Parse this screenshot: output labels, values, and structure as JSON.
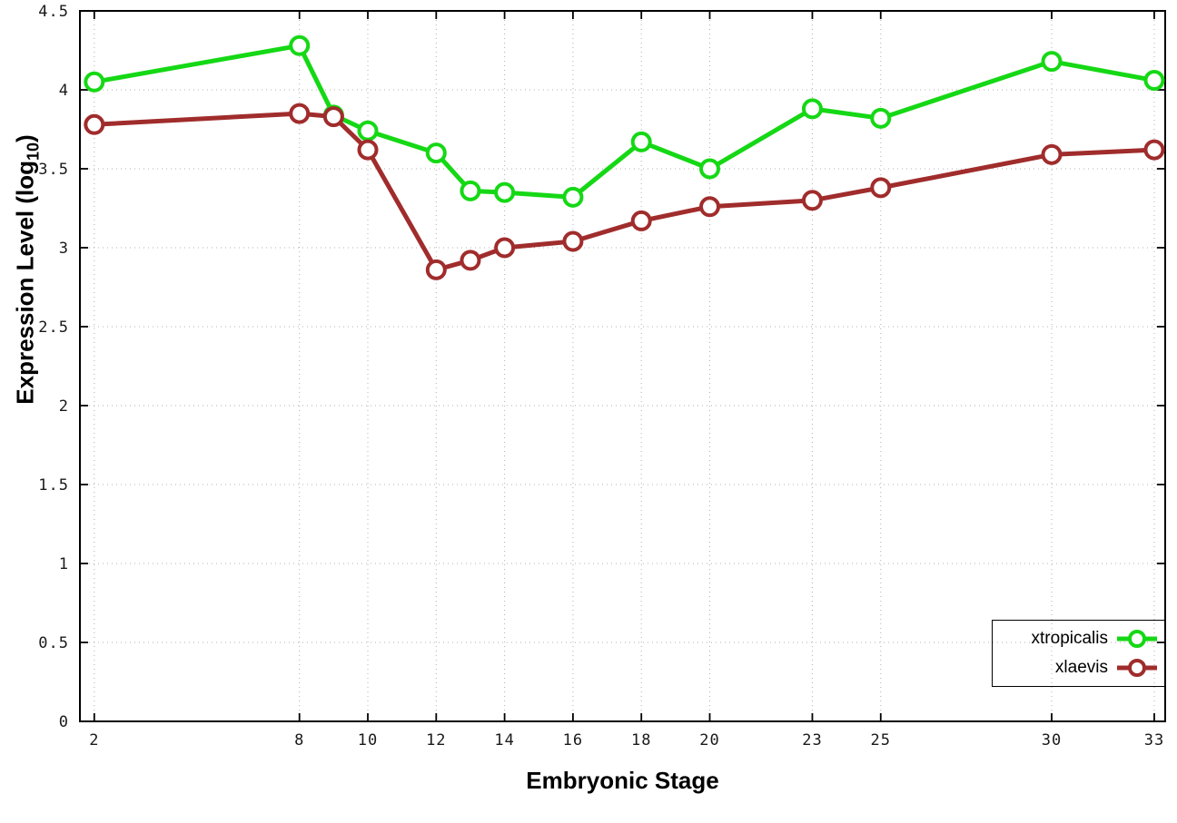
{
  "page": {
    "background": "#ffffff"
  },
  "chart_data": {
    "type": "line",
    "title": "",
    "xlabel": "Embryonic Stage",
    "ylabel": "Expression Level (log10)",
    "ylabel_parts": {
      "main": "Expression Level (log",
      "sub": "10",
      "close": ")"
    },
    "x": [
      2,
      8,
      9,
      10,
      12,
      13,
      14,
      16,
      18,
      20,
      23,
      25,
      30,
      33
    ],
    "x_ticks": [
      2,
      8,
      10,
      12,
      14,
      16,
      18,
      20,
      23,
      25,
      30,
      33
    ],
    "x_tick_labels": [
      "2",
      "8",
      "10",
      "12",
      "14",
      "16",
      "18",
      "20",
      "23",
      "25",
      "30",
      "33"
    ],
    "y_ticks": [
      0,
      0.5,
      1,
      1.5,
      2,
      2.5,
      3,
      3.5,
      4,
      4.5
    ],
    "y_tick_labels": [
      "0",
      "0.5",
      "1",
      "1.5",
      "2",
      "2.5",
      "3",
      "3.5",
      "4",
      "4.5"
    ],
    "xlim": [
      1.58,
      33.32
    ],
    "ylim": [
      0,
      4.5
    ],
    "grid": true,
    "legend_position": "bottom-right",
    "series": [
      {
        "name": "xtropicalis",
        "color": "#15d815",
        "values": [
          4.05,
          4.28,
          3.84,
          3.74,
          3.6,
          3.36,
          3.35,
          3.32,
          3.67,
          3.5,
          3.88,
          3.82,
          4.18,
          4.06
        ]
      },
      {
        "name": "xlaevis",
        "color": "#a02c2c",
        "values": [
          3.78,
          3.85,
          3.83,
          3.62,
          2.86,
          2.92,
          3.0,
          3.04,
          3.17,
          3.26,
          3.3,
          3.38,
          3.59,
          3.62
        ]
      }
    ],
    "marker": "open-circle",
    "colors": {
      "grid": "#b0b0b0",
      "axis": "#000000",
      "background": "#ffffff"
    }
  }
}
